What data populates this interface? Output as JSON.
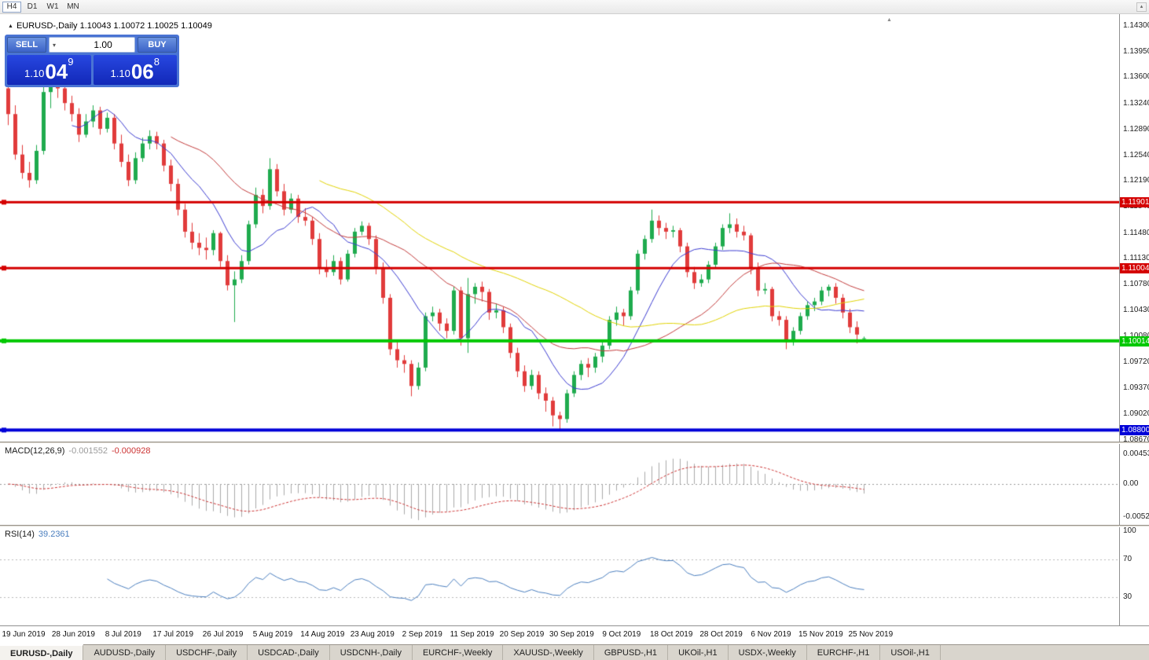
{
  "toolbar": {
    "timeframes": [
      "H4",
      "D1",
      "W1",
      "MN"
    ],
    "active_timeframe": "H4",
    "scroll_up_icon": "▴"
  },
  "chart": {
    "title": "EURUSD-,Daily 1.10043 1.10072 1.10025 1.10049"
  },
  "one_click": {
    "sell_label": "SELL",
    "buy_label": "BUY",
    "volume": "1.00",
    "sell_price": {
      "big": "1.10",
      "mid": "04",
      "sup": "9"
    },
    "buy_price": {
      "big": "1.10",
      "mid": "06",
      "sup": "8"
    }
  },
  "tabs": {
    "active_index": 0,
    "items": [
      "EURUSD-,Daily",
      "AUDUSD-,Daily",
      "USDCHF-,Daily",
      "USDCAD-,Daily",
      "USDCNH-,Daily",
      "EURCHF-,Weekly",
      "XAUUSD-,Weekly",
      "GBPUSD-,H1",
      "UKOil-,H1",
      "USDX-,Weekly",
      "EURCHF-,H1",
      "USOil-,H1"
    ]
  },
  "chart_data": {
    "type": "candlestick",
    "symbol": "EURUSD-",
    "timeframe": "Daily",
    "ohlc_display": {
      "open": "1.10043",
      "high": "1.10072",
      "low": "1.10025",
      "close": "1.10049"
    },
    "colors": {
      "up": "#1fab4e",
      "down": "#e13b3b",
      "background": "#ffffff"
    },
    "y_axis": {
      "top": 1.143,
      "bottom": 1.0867,
      "labels": [
        "1.14300",
        "1.13950",
        "1.13600",
        "1.13240",
        "1.12890",
        "1.12540",
        "1.12190",
        "1.11840",
        "1.11480",
        "1.11130",
        "1.10780",
        "1.10430",
        "1.10080",
        "1.09720",
        "1.09370",
        "1.09020",
        "1.08670"
      ]
    },
    "x_labels": [
      "19 Jun 2019",
      "28 Jun 2019",
      "8 Jul 2019",
      "17 Jul 2019",
      "26 Jul 2019",
      "5 Aug 2019",
      "14 Aug 2019",
      "23 Aug 2019",
      "2 Sep 2019",
      "11 Sep 2019",
      "20 Sep 2019",
      "30 Sep 2019",
      "9 Oct 2019",
      "18 Oct 2019",
      "28 Oct 2019",
      "6 Nov 2019",
      "15 Nov 2019",
      "25 Nov 2019"
    ],
    "horizontal_lines": [
      {
        "value": 1.11901,
        "label": "1.11901",
        "color": "#d40000",
        "thickness": 3
      },
      {
        "value": 1.11004,
        "label": "1.11004",
        "color": "#d40000",
        "thickness": 3
      },
      {
        "value": 1.10014,
        "label": "1.10014",
        "color": "#00c800",
        "thickness": 4
      },
      {
        "value": 1.088,
        "label": "1.08800",
        "color": "#0000d8",
        "thickness": 4
      }
    ],
    "moving_averages": [
      {
        "period": 10,
        "color": "#3b3bd0"
      },
      {
        "period": 24,
        "color": "#c23b3b"
      },
      {
        "period": 45,
        "color": "#e0d200"
      }
    ],
    "indicators": {
      "macd": {
        "name": "MACD(12,26,9)",
        "value": "-0.001552",
        "signal": "-0.000928",
        "axis_top": "0.004536",
        "axis_zero": "0.00",
        "axis_bottom": "-0.005205",
        "histogram_color": "#aaaaaa",
        "signal_color": "#cc3333"
      },
      "rsi": {
        "name": "RSI(14)",
        "value": "39.2361",
        "levels": [
          70,
          30
        ],
        "axis": [
          "100",
          "70",
          "30"
        ],
        "line_color": "#4a7ebe"
      }
    },
    "candles": [
      [
        1.1345,
        1.1355,
        1.1295,
        1.131
      ],
      [
        1.131,
        1.1322,
        1.1248,
        1.1255
      ],
      [
        1.1255,
        1.1268,
        1.1222,
        1.123
      ],
      [
        1.123,
        1.1245,
        1.121,
        1.122
      ],
      [
        1.122,
        1.1268,
        1.1215,
        1.126
      ],
      [
        1.126,
        1.1348,
        1.1255,
        1.134
      ],
      [
        1.134,
        1.1356,
        1.1318,
        1.135
      ],
      [
        1.135,
        1.136,
        1.1332,
        1.1345
      ],
      [
        1.1345,
        1.1352,
        1.1315,
        1.1325
      ],
      [
        1.1325,
        1.1335,
        1.13,
        1.131
      ],
      [
        1.131,
        1.1318,
        1.1272,
        1.1282
      ],
      [
        1.1282,
        1.131,
        1.1278,
        1.13
      ],
      [
        1.13,
        1.1322,
        1.1292,
        1.1315
      ],
      [
        1.1315,
        1.132,
        1.1282,
        1.129
      ],
      [
        1.129,
        1.1312,
        1.1285,
        1.1305
      ],
      [
        1.1305,
        1.131,
        1.1262,
        1.127
      ],
      [
        1.127,
        1.1282,
        1.1238,
        1.1245
      ],
      [
        1.1245,
        1.1255,
        1.1212,
        1.122
      ],
      [
        1.122,
        1.1258,
        1.1215,
        1.125
      ],
      [
        1.125,
        1.1278,
        1.1245,
        1.127
      ],
      [
        1.127,
        1.1288,
        1.1262,
        1.128
      ],
      [
        1.128,
        1.1286,
        1.1262,
        1.127
      ],
      [
        1.127,
        1.1275,
        1.1232,
        1.124
      ],
      [
        1.124,
        1.1248,
        1.1205,
        1.1215
      ],
      [
        1.1215,
        1.1222,
        1.1172,
        1.118
      ],
      [
        1.118,
        1.1188,
        1.1142,
        1.115
      ],
      [
        1.115,
        1.1162,
        1.1126,
        1.1135
      ],
      [
        1.1135,
        1.1148,
        1.1118,
        1.1128
      ],
      [
        1.1128,
        1.1142,
        1.1112,
        1.1125
      ],
      [
        1.1125,
        1.1152,
        1.1118,
        1.1148
      ],
      [
        1.1148,
        1.115,
        1.1102,
        1.111
      ],
      [
        1.111,
        1.1118,
        1.107,
        1.1077
      ],
      [
        1.1077,
        1.1096,
        1.1027,
        1.1085
      ],
      [
        1.1085,
        1.1118,
        1.108,
        1.111
      ],
      [
        1.111,
        1.1165,
        1.1105,
        1.116
      ],
      [
        1.116,
        1.121,
        1.1155,
        1.12
      ],
      [
        1.12,
        1.1208,
        1.1175,
        1.1185
      ],
      [
        1.1185,
        1.125,
        1.118,
        1.1235
      ],
      [
        1.1235,
        1.1242,
        1.1198,
        1.1205
      ],
      [
        1.1205,
        1.1215,
        1.1172,
        1.118
      ],
      [
        1.118,
        1.1202,
        1.1175,
        1.1195
      ],
      [
        1.1195,
        1.12,
        1.1162,
        1.117
      ],
      [
        1.117,
        1.1182,
        1.1158,
        1.1165
      ],
      [
        1.1165,
        1.117,
        1.1132,
        1.114
      ],
      [
        1.114,
        1.1148,
        1.1092,
        1.11
      ],
      [
        1.11,
        1.1112,
        1.1088,
        1.1095
      ],
      [
        1.1095,
        1.1118,
        1.109,
        1.111
      ],
      [
        1.111,
        1.1115,
        1.1078,
        1.1085
      ],
      [
        1.1085,
        1.1125,
        1.1082,
        1.112
      ],
      [
        1.112,
        1.1155,
        1.1115,
        1.115
      ],
      [
        1.115,
        1.1164,
        1.1145,
        1.1158
      ],
      [
        1.1158,
        1.1162,
        1.1132,
        1.114
      ],
      [
        1.114,
        1.1145,
        1.1092,
        1.11
      ],
      [
        1.11,
        1.1108,
        1.1052,
        1.106
      ],
      [
        1.106,
        1.1065,
        1.0982,
        1.099
      ],
      [
        1.099,
        1.1,
        1.0965,
        1.0975
      ],
      [
        1.0975,
        1.0982,
        1.0958,
        1.097
      ],
      [
        1.097,
        1.0975,
        1.0926,
        1.094
      ],
      [
        1.094,
        1.0972,
        1.0935,
        1.0965
      ],
      [
        1.0965,
        1.104,
        1.096,
        1.1035
      ],
      [
        1.1035,
        1.1048,
        1.1028,
        1.104
      ],
      [
        1.104,
        1.1045,
        1.1015,
        1.1025
      ],
      [
        1.1025,
        1.1032,
        1.1005,
        1.1015
      ],
      [
        1.1015,
        1.1075,
        1.101,
        1.107
      ],
      [
        1.107,
        1.1075,
        1.0995,
        1.1005
      ],
      [
        1.1005,
        1.1087,
        1.0985,
        1.1065
      ],
      [
        1.1065,
        1.108,
        1.1052,
        1.1075
      ],
      [
        1.1075,
        1.1082,
        1.1055,
        1.1068
      ],
      [
        1.1068,
        1.1072,
        1.103,
        1.104
      ],
      [
        1.104,
        1.1052,
        1.1032,
        1.1043
      ],
      [
        1.1043,
        1.1048,
        1.1012,
        1.102
      ],
      [
        1.102,
        1.1025,
        1.0978,
        1.0985
      ],
      [
        1.0985,
        1.0992,
        1.0952,
        1.096
      ],
      [
        1.096,
        1.0968,
        1.0932,
        1.094
      ],
      [
        1.094,
        1.0962,
        1.0935,
        1.0955
      ],
      [
        1.0955,
        1.096,
        1.0922,
        1.093
      ],
      [
        1.093,
        1.0938,
        1.0905,
        1.092
      ],
      [
        1.092,
        1.0925,
        1.0885,
        1.09
      ],
      [
        1.09,
        1.0905,
        1.0879,
        1.0895
      ],
      [
        1.0895,
        1.0935,
        1.089,
        1.093
      ],
      [
        1.093,
        1.096,
        1.0925,
        1.0955
      ],
      [
        1.0955,
        1.0975,
        1.0948,
        1.097
      ],
      [
        1.097,
        1.0978,
        1.0952,
        1.0965
      ],
      [
        1.0965,
        1.0985,
        1.0958,
        1.098
      ],
      [
        1.098,
        1.1,
        1.0972,
        1.0995
      ],
      [
        1.0995,
        1.1035,
        1.099,
        1.103
      ],
      [
        1.103,
        1.1048,
        1.1022,
        1.104
      ],
      [
        1.104,
        1.1045,
        1.1022,
        1.1035
      ],
      [
        1.1035,
        1.1075,
        1.103,
        1.107
      ],
      [
        1.107,
        1.1125,
        1.1065,
        1.112
      ],
      [
        1.112,
        1.1145,
        1.1112,
        1.114
      ],
      [
        1.114,
        1.118,
        1.1135,
        1.1165
      ],
      [
        1.1165,
        1.1172,
        1.1145,
        1.1155
      ],
      [
        1.1155,
        1.1162,
        1.114,
        1.115
      ],
      [
        1.115,
        1.1158,
        1.1142,
        1.1152
      ],
      [
        1.1152,
        1.1155,
        1.1122,
        1.113
      ],
      [
        1.113,
        1.1135,
        1.1088,
        1.1095
      ],
      [
        1.1095,
        1.1102,
        1.1072,
        1.108
      ],
      [
        1.108,
        1.1092,
        1.1075,
        1.1085
      ],
      [
        1.1085,
        1.111,
        1.108,
        1.1105
      ],
      [
        1.1105,
        1.1135,
        1.11,
        1.113
      ],
      [
        1.113,
        1.116,
        1.1125,
        1.1155
      ],
      [
        1.1155,
        1.1175,
        1.1148,
        1.116
      ],
      [
        1.116,
        1.1168,
        1.1142,
        1.115
      ],
      [
        1.115,
        1.1158,
        1.1138,
        1.1145
      ],
      [
        1.1145,
        1.1148,
        1.1092,
        1.11
      ],
      [
        1.11,
        1.1108,
        1.1062,
        1.107
      ],
      [
        1.107,
        1.108,
        1.1065,
        1.1072
      ],
      [
        1.1072,
        1.1075,
        1.1028,
        1.1035
      ],
      [
        1.1035,
        1.1042,
        1.1022,
        1.103
      ],
      [
        1.103,
        1.1035,
        1.099,
        1.1
      ],
      [
        1.1,
        1.102,
        1.0995,
        1.1015
      ],
      [
        1.1015,
        1.104,
        1.101,
        1.1035
      ],
      [
        1.1035,
        1.1055,
        1.103,
        1.105
      ],
      [
        1.105,
        1.106,
        1.1042,
        1.1055
      ],
      [
        1.1055,
        1.1075,
        1.105,
        1.107
      ],
      [
        1.107,
        1.1078,
        1.1062,
        1.1075
      ],
      [
        1.1075,
        1.108,
        1.1052,
        1.106
      ],
      [
        1.106,
        1.1065,
        1.1032,
        1.104
      ],
      [
        1.104,
        1.1045,
        1.1012,
        1.102
      ],
      [
        1.102,
        1.1028,
        1.0998,
        1.101
      ],
      [
        1.10043,
        1.10072,
        1.10025,
        1.10049
      ]
    ]
  }
}
